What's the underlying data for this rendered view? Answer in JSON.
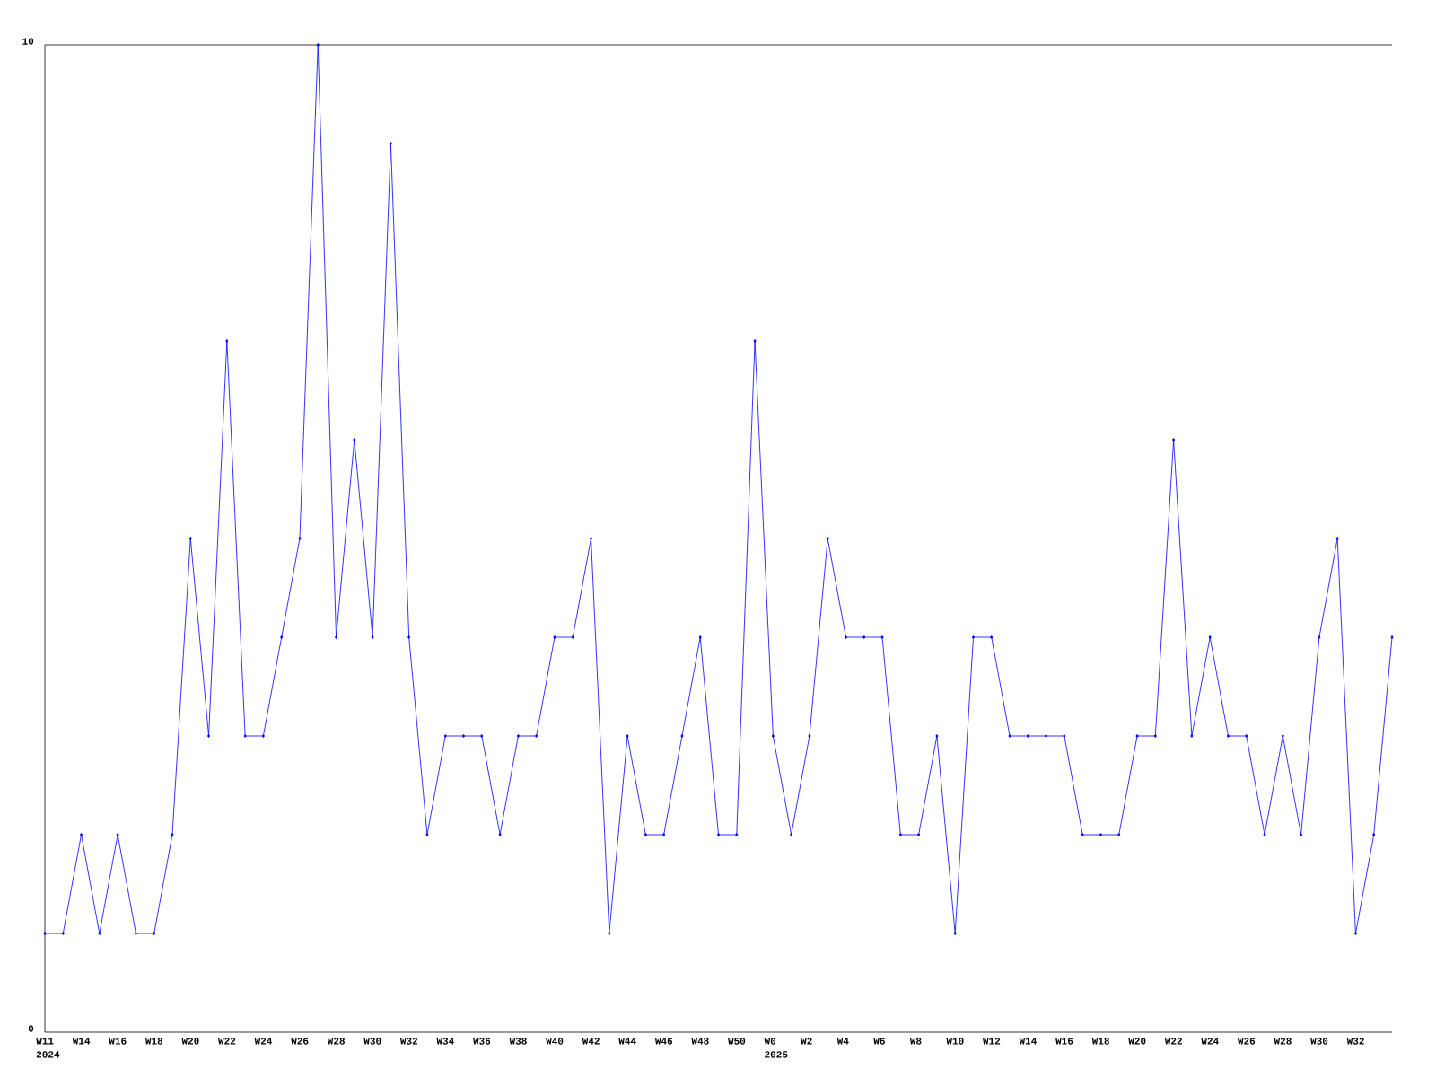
{
  "chart_data": {
    "type": "line",
    "color": "#0000ff",
    "marker": "diamond",
    "categories": [
      "W11",
      null,
      "W14",
      null,
      "W16",
      null,
      "W18",
      null,
      "W20",
      null,
      "W22",
      null,
      "W24",
      null,
      "W26",
      null,
      "W28",
      null,
      "W30",
      null,
      "W32",
      null,
      "W34",
      null,
      "W36",
      null,
      "W38",
      null,
      "W40",
      null,
      "W42",
      null,
      "W44",
      null,
      "W46",
      null,
      "W48",
      null,
      "W50",
      null,
      "W0",
      null,
      "W2",
      null,
      "W4",
      null,
      "W6",
      null,
      "W8",
      null,
      "W10",
      null,
      "W12",
      null,
      "W14",
      null,
      "W16",
      null,
      "W18",
      null,
      "W20",
      null,
      "W22",
      null,
      "W24",
      null,
      "W26",
      null,
      "W28",
      null,
      "W30",
      null,
      "W32",
      null,
      null
    ],
    "values": [
      1,
      1,
      2,
      1,
      2,
      1,
      1,
      2,
      5,
      3,
      7,
      3,
      3,
      4,
      5,
      10,
      4,
      6,
      4,
      9,
      4,
      2,
      3,
      3,
      3,
      2,
      3,
      3,
      4,
      4,
      5,
      1,
      3,
      2,
      2,
      3,
      4,
      2,
      2,
      7,
      3,
      2,
      3,
      5,
      4,
      4,
      4,
      2,
      2,
      3,
      1,
      4,
      4,
      3,
      3,
      3,
      3,
      2,
      2,
      2,
      3,
      3,
      6,
      3,
      4,
      3,
      3,
      2,
      3,
      2,
      4,
      5,
      1,
      2,
      4
    ],
    "ylim": [
      0,
      10
    ],
    "yticks": [
      0,
      10
    ],
    "annotations": [
      "2024",
      "2025"
    ]
  }
}
